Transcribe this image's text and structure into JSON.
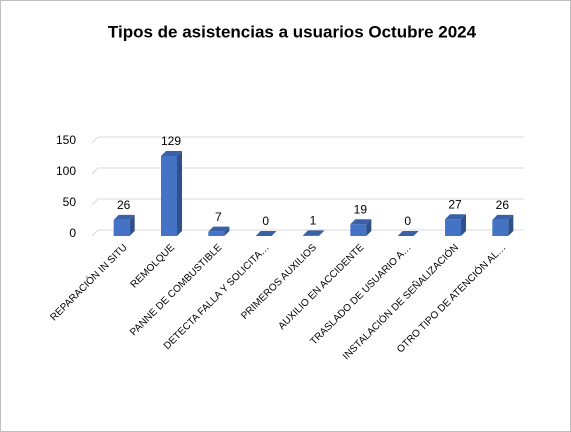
{
  "chart_data": {
    "type": "bar",
    "title": "Tipos de asistencias a usuarios Octubre 2024",
    "categories": [
      "REPARACIÓN IN SITU",
      "REMOLQUE",
      "PANNE DE COMBUSTIBLE",
      "DETECTA FALLA Y SOLICITA…",
      "PRIMEROS AUXILIOS",
      "AUXILIO EN ACCIDENTE",
      "TRASLADO DE USUARIO A…",
      "INSTALACIÓN DE SEÑALIZACIÓN",
      "OTRO TIPO DE ATENCIÓN AL…"
    ],
    "values": [
      26,
      129,
      7,
      0,
      1,
      19,
      0,
      27,
      26
    ],
    "color": "#4472c4",
    "ylim": [
      0,
      150
    ],
    "yticks": [
      0,
      50,
      100,
      150
    ],
    "grid": true
  }
}
